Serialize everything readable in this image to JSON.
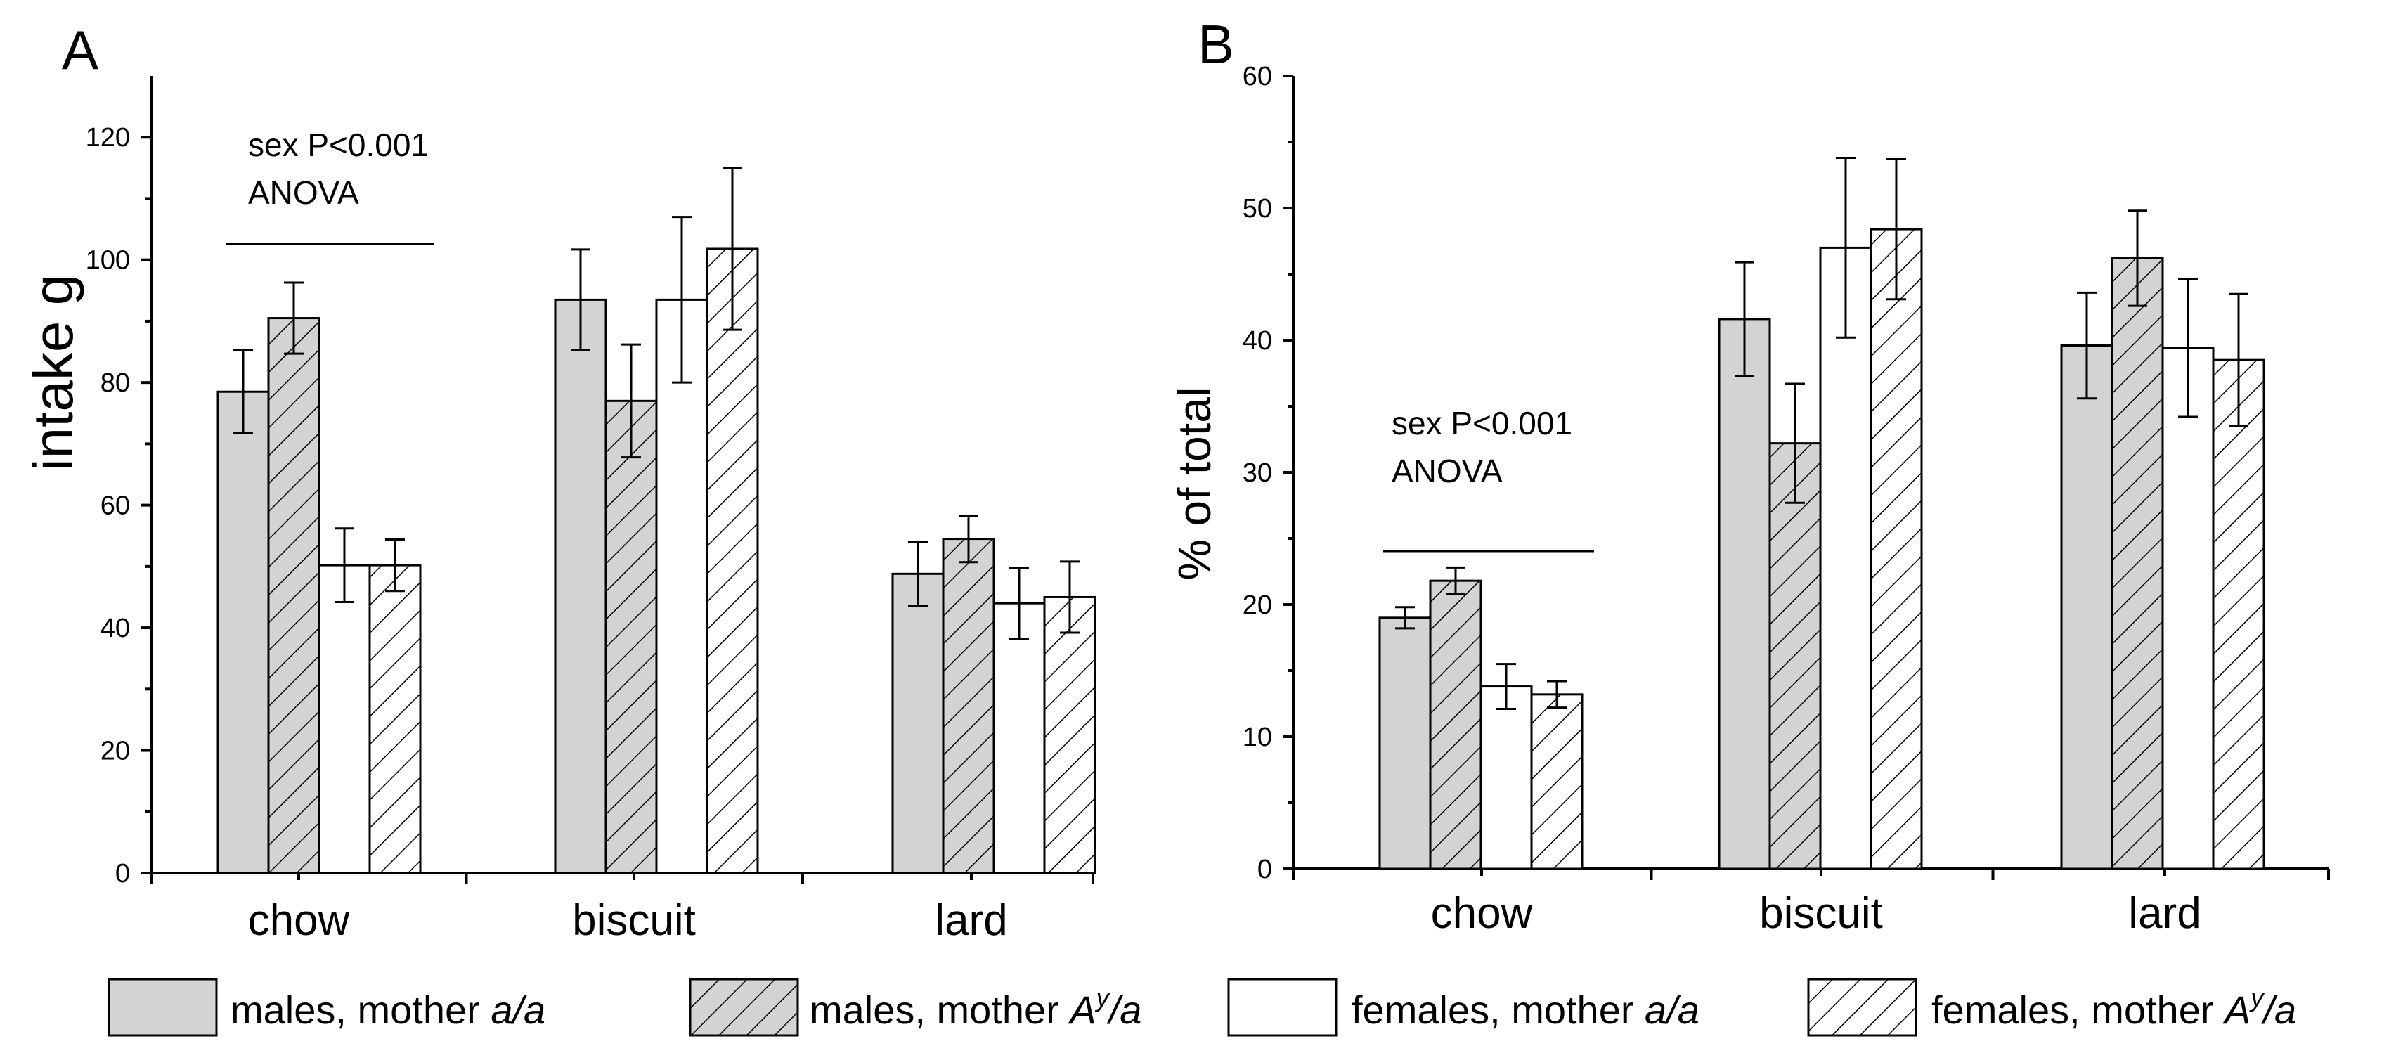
{
  "legend": [
    {
      "prefix": "males, mother ",
      "italic": "a/a",
      "fill": "gray"
    },
    {
      "prefix": "males, mother ",
      "italic": "A",
      "sup": "y",
      "suffix": "/a",
      "fill": "gray-hatched"
    },
    {
      "prefix": "females, mother ",
      "italic": "a/a",
      "fill": "white"
    },
    {
      "prefix": "females, mother ",
      "italic": "A",
      "sup": "y",
      "suffix": "/a",
      "fill": "white-hatched"
    }
  ],
  "colors": {
    "gray": "#d3d3d3",
    "white": "#ffffff",
    "line": "#000000"
  },
  "chart_data": [
    {
      "type": "bar",
      "panel": "A",
      "categories": [
        "chow",
        "biscuit",
        "lard"
      ],
      "ylabel": "intake g",
      "ylim": [
        0,
        130
      ],
      "yticks": [
        0,
        20,
        40,
        60,
        80,
        100,
        120
      ],
      "annotation": [
        "sex P<0.001",
        "ANOVA"
      ],
      "series": [
        {
          "values": [
            78.5,
            93.5,
            48.8
          ],
          "errors": [
            6.8,
            8.2,
            5.2
          ]
        },
        {
          "values": [
            90.5,
            77.0,
            54.5
          ],
          "errors": [
            5.8,
            9.2,
            3.8
          ]
        },
        {
          "values": [
            50.2,
            93.5,
            44.0
          ],
          "errors": [
            6.0,
            13.5,
            5.8
          ]
        },
        {
          "values": [
            50.2,
            101.8,
            45.0
          ],
          "errors": [
            4.2,
            13.2,
            5.8
          ]
        }
      ]
    },
    {
      "type": "bar",
      "panel": "B",
      "categories": [
        "chow",
        "biscuit",
        "lard"
      ],
      "ylabel": "% of total",
      "ylim": [
        0,
        60
      ],
      "yticks": [
        0,
        10,
        20,
        30,
        40,
        50,
        60
      ],
      "annotation": [
        "sex P<0.001",
        "ANOVA"
      ],
      "series": [
        {
          "values": [
            19.0,
            41.6,
            39.6
          ],
          "errors": [
            0.8,
            4.3,
            4.0
          ]
        },
        {
          "values": [
            21.8,
            32.2,
            46.2
          ],
          "errors": [
            1.0,
            4.5,
            3.6
          ]
        },
        {
          "values": [
            13.8,
            47.0,
            39.4
          ],
          "errors": [
            1.7,
            6.8,
            5.2
          ]
        },
        {
          "values": [
            13.2,
            48.4,
            38.5
          ],
          "errors": [
            1.0,
            5.3,
            5.0
          ]
        }
      ]
    }
  ]
}
